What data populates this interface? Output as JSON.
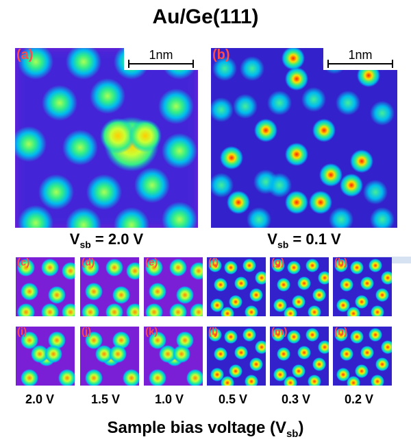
{
  "title": "Au/Ge(111)",
  "scale_bar": "1nm",
  "main_panels": [
    {
      "label": "(a)",
      "vsb_prefix": "V",
      "vsb_sub": "sb",
      "vsb_value": " = 2.0 V"
    },
    {
      "label": "(b)",
      "vsb_prefix": "V",
      "vsb_sub": "sb",
      "vsb_value": " = 0.1 V"
    }
  ],
  "top_row_labels": [
    "(c)",
    "(d)",
    "(e)",
    "(f)",
    "(g)",
    "(h)"
  ],
  "bottom_row_labels": [
    "(i)",
    "(j)",
    "(k)",
    "(l)",
    "(m)",
    "(n)"
  ],
  "column_voltages": [
    "2.0 V",
    "1.5 V",
    "1.0 V",
    "0.5 V",
    "0.3 V",
    "0.2 V"
  ],
  "x_axis": {
    "text": "Sample bias voltage (V",
    "sub": "sb",
    "close": ")"
  },
  "colors": {
    "panel_label": "#ff4b4b",
    "background": "#8a2be2"
  }
}
